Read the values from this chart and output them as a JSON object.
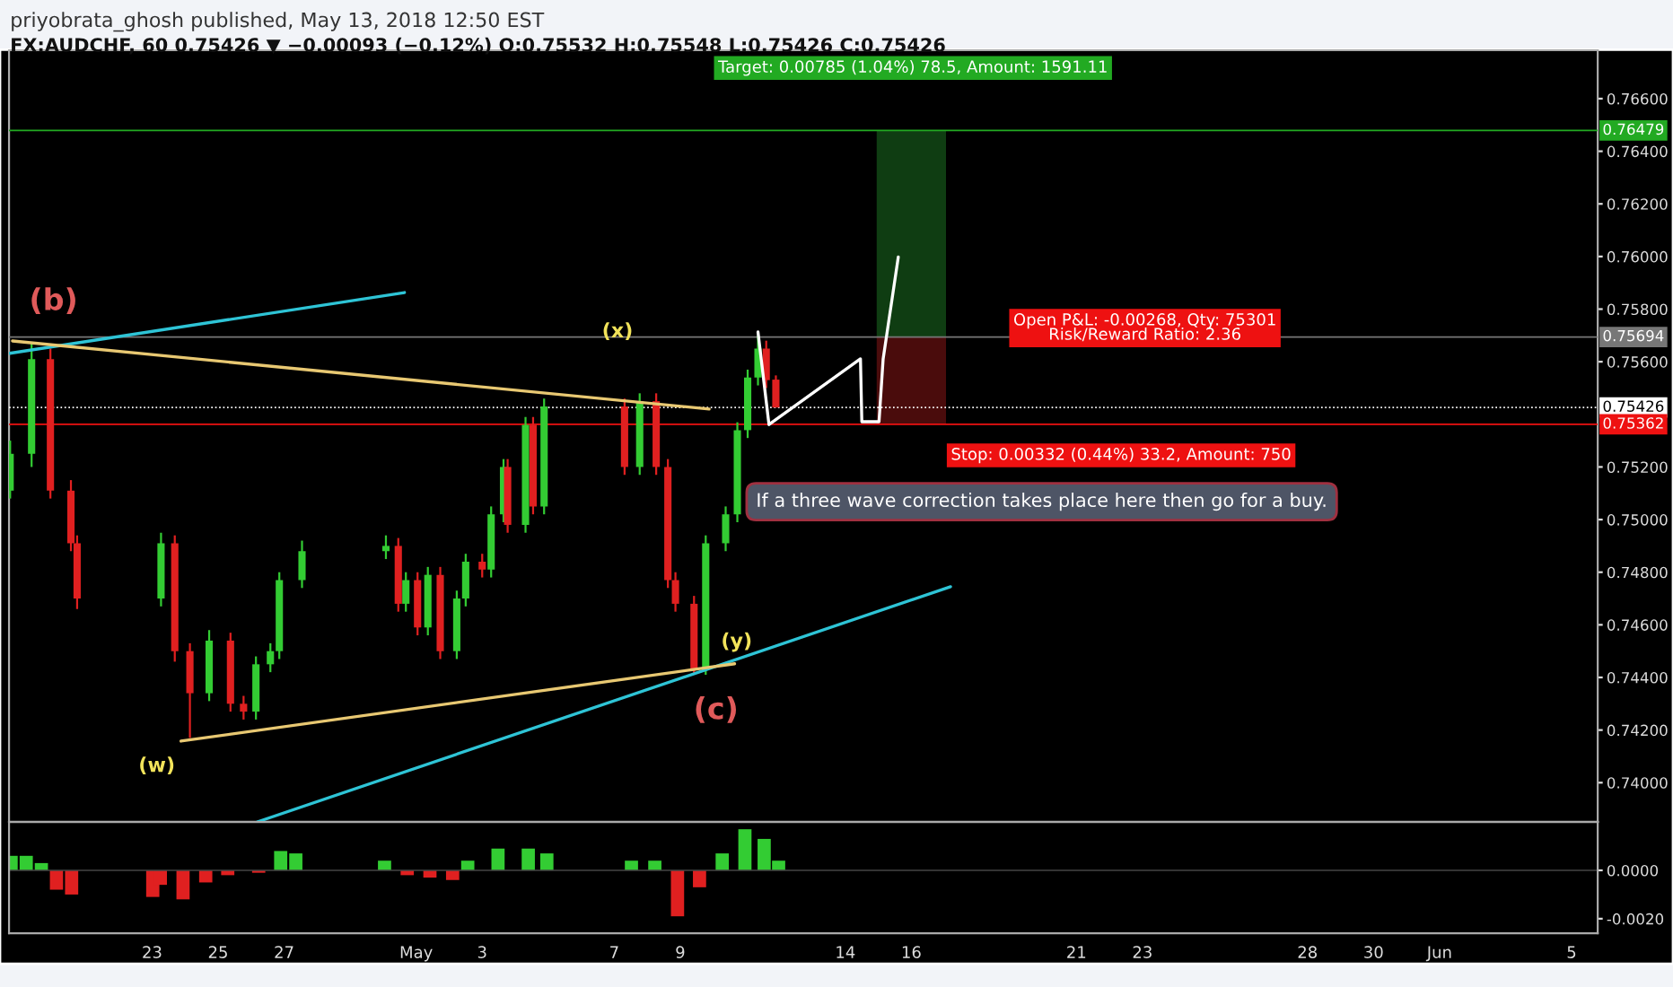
{
  "chart_data": [
    {
      "type": "candlestick",
      "title": "priyobrata_ghosh published, May 13, 2018 12:50 EST",
      "subtitle": "FX:AUDCHF, 60 0.75426 ▼ −0.00093 (−0.12%) O:0.75532 H:0.75548 L:0.75426 C:0.75426",
      "x": [
        "2018-04-18T16:48",
        "2018-04-19T08:24",
        "2018-04-19T22:05",
        "2018-04-20T13:00",
        "2018-04-20T17:30",
        "2018-04-23T06:30",
        "2018-04-23T16:30",
        "2018-04-24T03:30",
        "2018-04-24T17:30",
        "2018-04-25T09:00",
        "2018-04-25T18:30",
        "2018-04-26T03:30",
        "2018-04-26T14:00",
        "2018-04-26T20:30",
        "2018-04-27T13:00",
        "2018-04-30T02:00",
        "2018-04-30T11:00",
        "2018-04-30T16:30",
        "2018-05-01T01:00",
        "2018-05-01T08:30",
        "2018-05-01T17:30",
        "2018-05-02T05:30",
        "2018-05-02T12:00",
        "2018-05-03T00:00",
        "2018-05-03T06:30",
        "2018-05-03T15:30",
        "2018-05-03T18:30",
        "2018-05-04T07:30",
        "2018-05-04T13:00",
        "2018-05-04T21:00",
        "2018-05-07T07:30",
        "2018-05-07T18:30",
        "2018-05-08T06:30",
        "2018-05-08T15:00",
        "2018-05-08T20:30",
        "2018-05-09T10:00",
        "2018-05-09T18:30",
        "2018-05-10T09:00",
        "2018-05-10T17:30",
        "2018-05-11T01:00",
        "2018-05-11T08:30",
        "2018-05-11T14:30",
        "2018-05-11T21:30"
      ],
      "ohlc": [
        [
          0.7511,
          0.753,
          0.7508,
          0.7525
        ],
        [
          0.7525,
          0.7567,
          0.752,
          0.7561
        ],
        [
          0.7561,
          0.7565,
          0.7508,
          0.7511
        ],
        [
          0.7511,
          0.7515,
          0.7488,
          0.7491
        ],
        [
          0.7491,
          0.7494,
          0.7466,
          0.747
        ],
        [
          0.747,
          0.7495,
          0.7467,
          0.7491
        ],
        [
          0.7491,
          0.7494,
          0.7446,
          0.745
        ],
        [
          0.745,
          0.7453,
          0.7417,
          0.7434
        ],
        [
          0.7434,
          0.7458,
          0.7431,
          0.7454
        ],
        [
          0.7454,
          0.7457,
          0.7427,
          0.743
        ],
        [
          0.743,
          0.7433,
          0.7424,
          0.7427
        ],
        [
          0.7427,
          0.7448,
          0.7424,
          0.7445
        ],
        [
          0.7445,
          0.7453,
          0.7442,
          0.745
        ],
        [
          0.745,
          0.748,
          0.7447,
          0.7477
        ],
        [
          0.7477,
          0.7492,
          0.7474,
          0.7488
        ],
        [
          0.7488,
          0.7494,
          0.7485,
          0.749
        ],
        [
          0.749,
          0.7493,
          0.7465,
          0.7468
        ],
        [
          0.7468,
          0.748,
          0.7465,
          0.7477
        ],
        [
          0.7477,
          0.748,
          0.7456,
          0.7459
        ],
        [
          0.7459,
          0.7482,
          0.7456,
          0.7479
        ],
        [
          0.7479,
          0.7482,
          0.7447,
          0.745
        ],
        [
          0.745,
          0.7473,
          0.7447,
          0.747
        ],
        [
          0.747,
          0.7487,
          0.7467,
          0.7484
        ],
        [
          0.7484,
          0.7487,
          0.7478,
          0.7481
        ],
        [
          0.7481,
          0.7505,
          0.7478,
          0.7502
        ],
        [
          0.7502,
          0.7523,
          0.7499,
          0.752
        ],
        [
          0.752,
          0.7523,
          0.7495,
          0.7498
        ],
        [
          0.7498,
          0.7539,
          0.7495,
          0.7536
        ],
        [
          0.7536,
          0.7539,
          0.7502,
          0.7505
        ],
        [
          0.7505,
          0.7546,
          0.7502,
          0.7543
        ],
        [
          0.7543,
          0.7546,
          0.7517,
          0.752
        ],
        [
          0.752,
          0.7548,
          0.7517,
          0.7545
        ],
        [
          0.7545,
          0.7548,
          0.7517,
          0.752
        ],
        [
          0.752,
          0.7523,
          0.7474,
          0.7477
        ],
        [
          0.7477,
          0.748,
          0.7465,
          0.7468
        ],
        [
          0.7468,
          0.7471,
          0.7441,
          0.7443
        ],
        [
          0.7443,
          0.7494,
          0.7441,
          0.7491
        ],
        [
          0.7491,
          0.7505,
          0.7488,
          0.7502
        ],
        [
          0.7502,
          0.7537,
          0.7499,
          0.7534
        ],
        [
          0.7534,
          0.7557,
          0.7531,
          0.7554
        ],
        [
          0.7554,
          0.757,
          0.7551,
          0.7565
        ],
        [
          0.7565,
          0.7568,
          0.755,
          0.7553
        ],
        [
          0.75532,
          0.75548,
          0.75426,
          0.75426
        ]
      ],
      "colors": [
        "#33cc33",
        "#33cc33",
        "#e02020",
        "#e02020",
        "#e02020",
        "#33cc33",
        "#e02020",
        "#e02020",
        "#33cc33",
        "#e02020",
        "#e02020",
        "#33cc33",
        "#33cc33",
        "#33cc33",
        "#33cc33",
        "#33cc33",
        "#e02020",
        "#33cc33",
        "#e02020",
        "#33cc33",
        "#e02020",
        "#33cc33",
        "#33cc33",
        "#e02020",
        "#33cc33",
        "#33cc33",
        "#e02020",
        "#33cc33",
        "#e02020",
        "#33cc33",
        "#e02020",
        "#33cc33",
        "#e02020",
        "#e02020",
        "#e02020",
        "#e02020",
        "#33cc33",
        "#33cc33",
        "#33cc33",
        "#33cc33",
        "#33cc33",
        "#e02020",
        "#e02020"
      ],
      "series": [
        {
          "type": "bar",
          "color": "#0f3d12",
          "x": [
            "2018-05-16T00:00"
          ],
          "base": [
            0.75694
          ],
          "values": [
            0.00785
          ]
        },
        {
          "type": "bar",
          "color": "#4a0c0c",
          "x": [
            "2018-05-16T00:00"
          ],
          "base": [
            0.75362
          ],
          "values": [
            0.00332
          ]
        },
        {
          "type": "line",
          "color": "#2ec4d6",
          "x": [
            "2018-04-18T16:30",
            "2018-04-30T15:30"
          ],
          "values": [
            0.75632,
            0.75863
          ]
        },
        {
          "type": "line",
          "color": "#2ec4d6",
          "x": [
            "2018-04-26T04:30",
            "2018-05-17T04:30"
          ],
          "values": [
            0.73851,
            0.74745
          ]
        },
        {
          "type": "line",
          "color": "#e8c872",
          "x": [
            "2018-04-18T18:30",
            "2018-05-09T21:00"
          ],
          "values": [
            0.75679,
            0.7542
          ]
        },
        {
          "type": "line",
          "color": "#e8c872",
          "x": [
            "2018-04-23T21:00",
            "2018-05-10T15:30"
          ],
          "values": [
            0.74158,
            0.74452
          ]
        },
        {
          "type": "line",
          "color": "#ffffff",
          "x": [
            "2018-05-11T08:30",
            "2018-05-11T16:30",
            "2018-05-14T11:00",
            "2018-05-14T12:00",
            "2018-05-15T00:30",
            "2018-05-15T03:30",
            "2018-05-15T14:30"
          ],
          "values": [
            0.75713,
            0.75361,
            0.75611,
            0.75372,
            0.75372,
            0.75611,
            0.75998
          ]
        }
      ],
      "xlim": [
        "2018-04-18T16:00",
        "2018-06-05T19:00"
      ],
      "ylim": [
        0.73851,
        0.76784
      ],
      "yticks": [
        {
          "value": 0.74,
          "label": "0.74000"
        },
        {
          "value": 0.742,
          "label": "0.74200"
        },
        {
          "value": 0.744,
          "label": "0.74400"
        },
        {
          "value": 0.746,
          "label": "0.74600"
        },
        {
          "value": 0.748,
          "label": "0.74800"
        },
        {
          "value": 0.75,
          "label": "0.75000"
        },
        {
          "value": 0.752,
          "label": "0.75200"
        },
        {
          "value": 0.756,
          "label": "0.75600"
        },
        {
          "value": 0.758,
          "label": "0.75800"
        },
        {
          "value": 0.76,
          "label": "0.76000"
        },
        {
          "value": 0.762,
          "label": "0.76200"
        },
        {
          "value": 0.764,
          "label": "0.76400"
        },
        {
          "value": 0.766,
          "label": "0.76600"
        }
      ],
      "tick_labels": "y",
      "ref_lines": [
        {
          "axis": "y",
          "value": 0.76479,
          "label": "0.76479",
          "color": "#22aa22",
          "line_style": "solid"
        },
        {
          "axis": "y",
          "value": 0.75694,
          "label": "0.75694",
          "color": "#777777",
          "line_style": "solid"
        },
        {
          "axis": "y",
          "value": 0.75426,
          "label": "0.75426",
          "color": "#ffffff",
          "line_style": "dotted"
        },
        {
          "axis": "y",
          "value": 0.75362,
          "label": "0.75362",
          "color": "#ee1111",
          "line_style": "solid"
        }
      ],
      "annotations": [
        "(b)",
        "(x)",
        "(w)",
        "(y)",
        "(c)",
        "Target: 0.00785 (1.04%) 78.5, Amount: 1591.11",
        "Open P&L: -0.00268, Qty: 75301\nRisk/Reward Ratio: 2.36",
        "Stop: 0.00332 (0.44%) 33.2, Amount: 750",
        "If a three wave correction takes place here then go for a buy."
      ]
    },
    {
      "type": "bar",
      "x": [
        "2018-04-18T17:30",
        "2018-04-19T04:30",
        "2018-04-19T15:30",
        "2018-04-20T02:30",
        "2018-04-20T13:30",
        "2018-04-23T00:30",
        "2018-04-23T06:00",
        "2018-04-23T22:30",
        "2018-04-24T15:00",
        "2018-04-25T07:00",
        "2018-04-26T05:30",
        "2018-04-26T21:30",
        "2018-04-27T08:30",
        "2018-04-30T01:00",
        "2018-04-30T17:30",
        "2018-05-01T10:00",
        "2018-05-02T02:30",
        "2018-05-02T13:30",
        "2018-05-03T11:30",
        "2018-05-04T09:30",
        "2018-05-04T23:00",
        "2018-05-07T12:30",
        "2018-05-08T05:30",
        "2018-05-08T22:00",
        "2018-05-09T14:00",
        "2018-05-10T06:30",
        "2018-05-10T23:00",
        "2018-05-11T13:00",
        "2018-05-11T23:30"
      ],
      "values": [
        0.0006,
        0.0006,
        0.0003,
        -0.0008,
        -0.001,
        -0.0011,
        -0.0006,
        -0.0012,
        -0.0005,
        -0.0002,
        -0.0001,
        0.0008,
        0.0007,
        0.0004,
        -0.0002,
        -0.0003,
        -0.0004,
        0.0004,
        0.0009,
        0.0009,
        0.0007,
        0.0004,
        0.0004,
        -0.0019,
        -0.0007,
        0.0007,
        0.0017,
        0.0013,
        0.0004
      ],
      "colors": [
        "#33cc33",
        "#33cc33",
        "#33cc33",
        "#e02020",
        "#e02020",
        "#e02020",
        "#e02020",
        "#e02020",
        "#e02020",
        "#e02020",
        "#e02020",
        "#33cc33",
        "#33cc33",
        "#33cc33",
        "#e02020",
        "#e02020",
        "#e02020",
        "#33cc33",
        "#33cc33",
        "#33cc33",
        "#33cc33",
        "#33cc33",
        "#33cc33",
        "#e02020",
        "#e02020",
        "#33cc33",
        "#33cc33",
        "#33cc33",
        "#33cc33"
      ],
      "xlim": [
        "2018-04-18T16:00",
        "2018-06-05T19:00"
      ],
      "ylim": [
        -0.0026,
        0.002
      ],
      "xticks": [
        {
          "value": "2018-04-23",
          "label": "23"
        },
        {
          "value": "2018-04-25",
          "label": "25"
        },
        {
          "value": "2018-04-27",
          "label": "27"
        },
        {
          "value": "2018-05-01",
          "label": "May"
        },
        {
          "value": "2018-05-03",
          "label": "3"
        },
        {
          "value": "2018-05-07",
          "label": "7"
        },
        {
          "value": "2018-05-09",
          "label": "9"
        },
        {
          "value": "2018-05-14",
          "label": "14"
        },
        {
          "value": "2018-05-16",
          "label": "16"
        },
        {
          "value": "2018-05-21",
          "label": "21"
        },
        {
          "value": "2018-05-23",
          "label": "23"
        },
        {
          "value": "2018-05-28",
          "label": "28"
        },
        {
          "value": "2018-05-30",
          "label": "30"
        },
        {
          "value": "2018-06-01",
          "label": "Jun"
        },
        {
          "value": "2018-06-05",
          "label": "5"
        }
      ],
      "yticks": [
        {
          "value": 0,
          "label": "0.0000"
        },
        {
          "value": -0.002,
          "label": "-0.0020"
        }
      ]
    }
  ]
}
